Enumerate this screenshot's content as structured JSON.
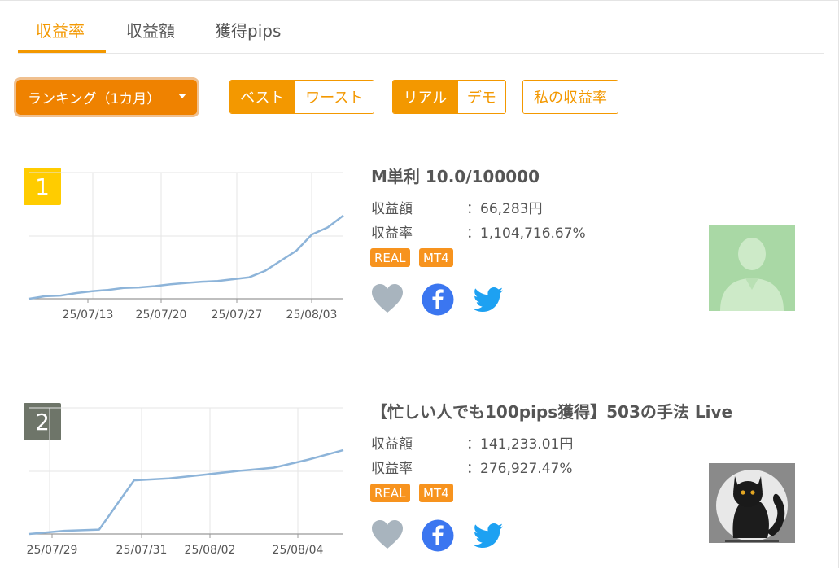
{
  "tabs": [
    {
      "label": "収益率",
      "active": true
    },
    {
      "label": "収益額",
      "active": false
    },
    {
      "label": "獲得pips",
      "active": false
    }
  ],
  "controls": {
    "dropdown_label": "ランキング（1カ月）",
    "best_label": "ベスト",
    "worst_label": "ワースト",
    "real_label": "リアル",
    "demo_label": "デモ",
    "my_rate_label": "私の収益率"
  },
  "colors": {
    "accent": "#f39800",
    "rank1": "#ffcc00",
    "rank2": "#6e7569",
    "line": "#8db4d9",
    "facebook": "#3b76f0",
    "twitter": "#1da1f2",
    "heart": "#a8b4be"
  },
  "entries": [
    {
      "rank": "1",
      "title": "M単利 10.0/100000",
      "amount_label": "収益額",
      "amount_value": "：66,283円",
      "rate_label": "収益率",
      "rate_value": "：1,104,716.67%",
      "badges": [
        "REAL",
        "MT4"
      ],
      "avatar": "default-user-avatar",
      "chart_data": {
        "type": "line",
        "x_ticks": [
          "25/07/13",
          "25/07/20",
          "25/07/27",
          "25/08/03"
        ],
        "values": [
          0,
          4,
          5,
          9,
          12,
          14,
          17,
          18,
          20,
          23,
          25,
          27,
          28,
          31,
          34,
          44,
          60,
          76,
          102,
          113,
          132
        ],
        "ylim": [
          0,
          200
        ],
        "grid": true
      }
    },
    {
      "rank": "2",
      "title": "【忙しい人でも100pips獲得】503の手法 Live",
      "amount_label": "収益額",
      "amount_value": "：141,233.01円",
      "rate_label": "収益率",
      "rate_value": "：276,927.47%",
      "badges": [
        "REAL",
        "MT4"
      ],
      "avatar": "black-cat-avatar",
      "chart_data": {
        "type": "line",
        "x_ticks": [
          "25/07/29",
          "25/07/31",
          "25/08/02",
          "25/08/04"
        ],
        "values": [
          0,
          5,
          7,
          85,
          88,
          94,
          100,
          105,
          118,
          133
        ],
        "ylim": [
          0,
          200
        ],
        "grid": true
      }
    }
  ]
}
